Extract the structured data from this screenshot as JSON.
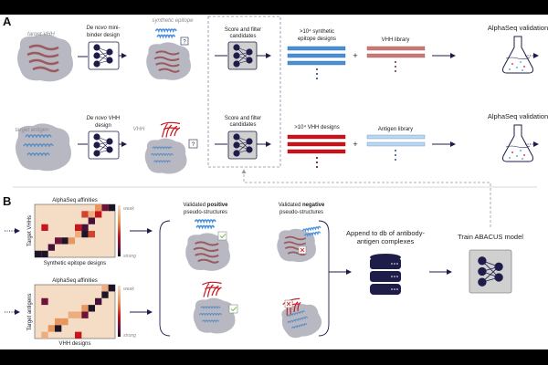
{
  "panel_a": {
    "label": "A",
    "row1": {
      "target_label": "target VHH",
      "design_step": [
        "De novo",
        " mini-",
        "binder design"
      ],
      "product_label": "synthetic epitope",
      "unknown_marker": "?",
      "score_step": [
        "Score and filter",
        "candidates"
      ],
      "designs_label": [
        ">10⁴ synthetic",
        "epitope designs"
      ],
      "library_label": "VHH library",
      "validation_label": "AlphaSeq validation"
    },
    "row2": {
      "target_label": "target antigen",
      "design_step": [
        "De novo",
        " VHH",
        "design"
      ],
      "product_label": "VHH",
      "unknown_marker": "?",
      "score_step": [
        "Score and filter",
        "candidates"
      ],
      "designs_label": ">10⁴ VHH designs",
      "library_label": "Antigen library",
      "validation_label": "AlphaSeq validation"
    },
    "plus": "+"
  },
  "panel_b": {
    "label": "B",
    "heatmap1": {
      "title": "AlphaSeq affinities",
      "ylabel": "Target VHHs",
      "xlabel": "Synthetic epitope designs",
      "scale_high": "weak",
      "scale_low": "strong",
      "cells": [
        [
          0,
          0,
          1
        ],
        [
          0,
          1,
          1
        ],
        [
          1,
          2,
          0.9
        ],
        [
          2,
          3,
          0.8
        ],
        [
          2,
          4,
          1
        ],
        [
          2,
          5,
          0.3
        ],
        [
          3,
          6,
          0.2
        ],
        [
          3,
          7,
          1
        ],
        [
          3,
          8,
          0.5
        ],
        [
          4,
          1,
          0.6
        ],
        [
          4,
          6,
          0.6
        ],
        [
          4,
          7,
          0.9
        ],
        [
          5,
          8,
          0.9
        ],
        [
          6,
          9,
          0.6
        ],
        [
          6,
          7,
          0.5
        ],
        [
          7,
          10,
          0.8
        ],
        [
          7,
          11,
          1
        ],
        [
          7,
          9,
          0.3
        ],
        [
          6,
          8,
          0.2
        ]
      ]
    },
    "heatmap2": {
      "title": "AlphaSeq affinities",
      "ylabel": "Target antigens",
      "xlabel": "VHH designs",
      "scale_high": "weak",
      "scale_low": "strong",
      "cells": [
        [
          0,
          1,
          0.2
        ],
        [
          0,
          6,
          0.6
        ],
        [
          1,
          2,
          0.3
        ],
        [
          1,
          3,
          1
        ],
        [
          2,
          3,
          0.3
        ],
        [
          2,
          4,
          0.3
        ],
        [
          3,
          5,
          0.2
        ],
        [
          3,
          6,
          0.2
        ],
        [
          3,
          7,
          0.8
        ],
        [
          4,
          7,
          0.3
        ],
        [
          4,
          8,
          1
        ],
        [
          5,
          1,
          0.8
        ],
        [
          5,
          9,
          0.9
        ],
        [
          6,
          10,
          1
        ],
        [
          7,
          10,
          0.2
        ],
        [
          7,
          11,
          1
        ]
      ]
    },
    "positive_header": [
      "Validated ",
      "positive",
      "pseudo-structures"
    ],
    "negative_header": [
      "Validated ",
      "negative",
      "pseudo-structures"
    ],
    "database_step": [
      "Append to db of antibody-",
      "antigen complexes"
    ],
    "train_step": "Train ABACUS model"
  },
  "colors": {
    "navy": "#1e1d4a",
    "epitope_blue": "#4a90d9",
    "vhh_red": "#c8141c",
    "vhh_library": "#c97a78",
    "antigen_library": "#b9d7ef",
    "surface_gray": "#b8b8c2",
    "heat_bg": "#f5dcc5",
    "check_green": "#7ac142",
    "cross_red": "#d9302c"
  }
}
